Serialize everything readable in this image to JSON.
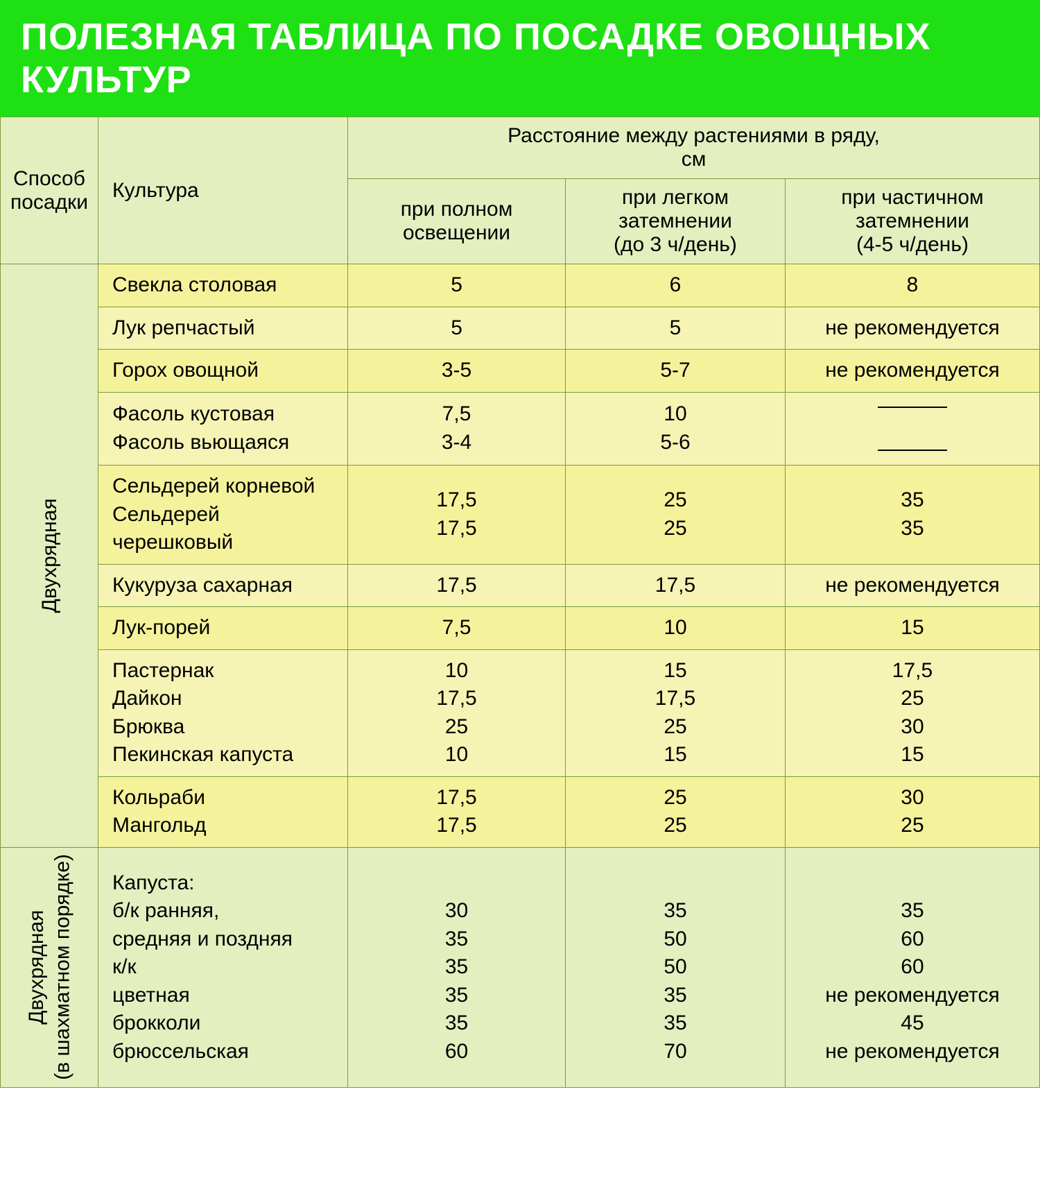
{
  "title": "ПОЛЕЗНАЯ ТАБЛИЦА ПО ПОСАДКЕ ОВОЩНЫХ КУЛЬТУР",
  "colors": {
    "title_bg": "#1ee012",
    "title_text": "#ffffff",
    "header_bg": "#e4efc0",
    "row_a": "#f5f29c",
    "row_b": "#f6f4b5",
    "row_g": "#e4efc0",
    "border": "#7a9a3a",
    "text": "#000000"
  },
  "header": {
    "method": "Способ посадки",
    "culture": "Культура",
    "distance_group": "Расстояние между растениями в ряду,\nсм",
    "col_full": "при полном освещении",
    "col_light": "при легком затемнении\n(до 3 ч/день)",
    "col_partial": "при частичном затемнении\n(4-5 ч/день)"
  },
  "groups": {
    "g1": {
      "label": "Двухрядная",
      "rows": [
        {
          "crop": "Свекла столовая",
          "full": "5",
          "light": "6",
          "partial": "8",
          "shade": "a"
        },
        {
          "crop": "Лук репчастый",
          "full": "5",
          "light": "5",
          "partial": "не рекомендуется",
          "shade": "b"
        },
        {
          "crop": "Горох овощной",
          "full": "3-5",
          "light": "5-7",
          "partial": "не рекомендуется",
          "shade": "a"
        },
        {
          "crop": "Фасоль кустовая\nФасоль вьющаяся",
          "full": "7,5\n3-4",
          "light": "10\n5-6",
          "partial": "DASH\nDASH",
          "shade": "b"
        },
        {
          "crop": "Сельдерей корневой\nСельдерей черешковый",
          "full": "17,5\n17,5",
          "light": "25\n25",
          "partial": "35\n35",
          "shade": "a"
        },
        {
          "crop": "Кукуруза сахарная",
          "full": "17,5",
          "light": "17,5",
          "partial": "не рекомендуется",
          "shade": "b"
        },
        {
          "crop": "Лук-порей",
          "full": "7,5",
          "light": "10",
          "partial": "15",
          "shade": "a"
        },
        {
          "crop": "Пастернак\nДайкон\nБрюква\nПекинская капуста",
          "full": "10\n17,5\n25\n10",
          "light": "15\n17,5\n25\n15",
          "partial": "17,5\n25\n30\n15",
          "shade": "b"
        },
        {
          "crop": "Кольраби\nМангольд",
          "full": "17,5\n17,5",
          "light": "25\n25",
          "partial": "30\n25",
          "shade": "a"
        }
      ]
    },
    "g2": {
      "label": "Двухрядная\n(в шахматном порядке)",
      "rows": [
        {
          "crop": "Капуста:\nб/к ранняя,\nсредняя и поздняя\nк/к\nцветная\nброкколи\nбрюссельская",
          "full": "\n30\n35\n35\n35\n35\n60",
          "light": "\n35\n50\n50\n35\n35\n70",
          "partial": "\n35\n60\n60\nне рекомендуется\n45\nне рекомендуется",
          "shade": "g"
        }
      ]
    }
  }
}
